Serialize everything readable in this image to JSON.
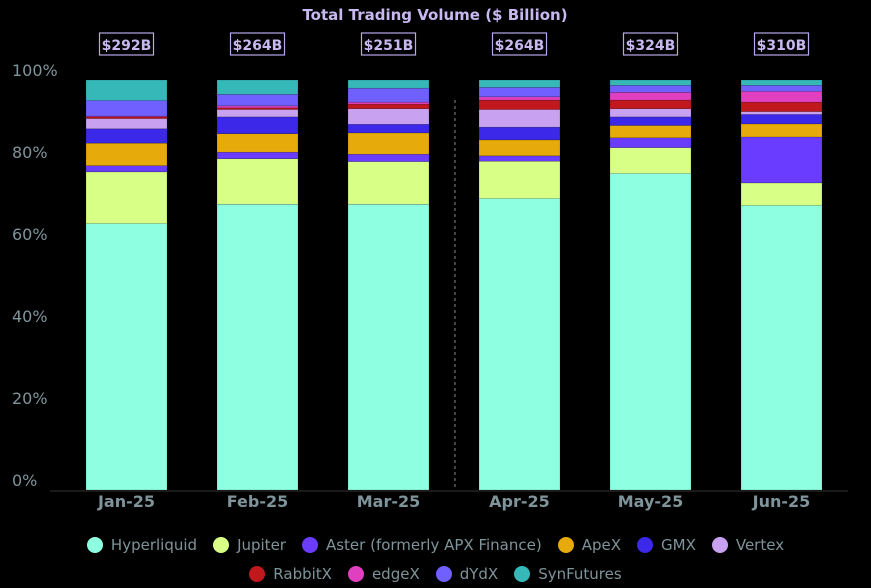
{
  "chart_data": {
    "type": "bar",
    "stacked": true,
    "normalized": true,
    "title": "Total Trading Volume ($ Billion)",
    "categories": [
      "Jan-25",
      "Feb-25",
      "Mar-25",
      "Apr-25",
      "May-25",
      "Jun-25"
    ],
    "totals": [
      "$292B",
      "$264B",
      "$251B",
      "$264B",
      "$324B",
      "$310B"
    ],
    "yticks": [
      "0%",
      "20%",
      "40%",
      "60%",
      "80%",
      "100%"
    ],
    "ylim": [
      0,
      100
    ],
    "grid": false,
    "legend_position": "bottom",
    "series": [
      {
        "name": "Hyperliquid",
        "color": "#8effe0",
        "values": [
          65.0,
          69.7,
          69.7,
          71.1,
          77.2,
          69.4
        ]
      },
      {
        "name": "Jupiter",
        "color": "#d8ff86",
        "values": [
          12.6,
          11.1,
          10.4,
          9.1,
          6.3,
          5.5
        ]
      },
      {
        "name": "Aster (formerly APX Finance)",
        "color": "#6a3cff",
        "values": [
          1.5,
          1.6,
          1.8,
          1.3,
          2.4,
          11.2
        ]
      },
      {
        "name": "ApeX",
        "color": "#e6aa0a",
        "values": [
          5.5,
          4.5,
          5.2,
          3.9,
          3.0,
          3.2
        ]
      },
      {
        "name": "GMX",
        "color": "#3b28e8",
        "values": [
          3.5,
          4.1,
          2.1,
          3.1,
          2.1,
          2.3
        ]
      },
      {
        "name": "Vertex",
        "color": "#c8a2f0",
        "values": [
          2.5,
          1.8,
          3.8,
          4.3,
          2.0,
          0.7
        ]
      },
      {
        "name": "RabbitX",
        "color": "#c0181d",
        "values": [
          0.4,
          0.4,
          1.1,
          2.3,
          2.1,
          2.3
        ]
      },
      {
        "name": "edgeX",
        "color": "#e040c0",
        "values": [
          0.2,
          0.5,
          0.5,
          0.8,
          1.9,
          2.6
        ]
      },
      {
        "name": "dYdX",
        "color": "#7060ff",
        "values": [
          3.8,
          2.8,
          3.4,
          2.3,
          1.7,
          1.5
        ]
      },
      {
        "name": "SynFutures",
        "color": "#36b8b8",
        "values": [
          5.0,
          3.5,
          2.0,
          1.8,
          1.3,
          1.3
        ]
      }
    ]
  }
}
